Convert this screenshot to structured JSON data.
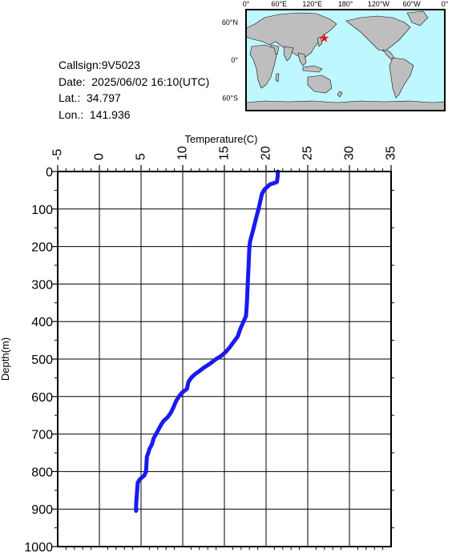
{
  "info": {
    "callsign": "Callsign:9V5023",
    "date": "Date:  2025/06/02 16:10(UTC)",
    "lat": "Lat.:  34.797",
    "lon": "Lon.:  141.936"
  },
  "map": {
    "lon_labels": [
      "0°",
      "60°E",
      "120°E",
      "180°",
      "120°W",
      "60°W",
      "0°"
    ],
    "lat_labels": [
      "60°N",
      "0°",
      "60°S"
    ],
    "marker": {
      "lat": 34.797,
      "lon": 141.936
    },
    "colors": {
      "ocean": "#bff7ff",
      "land": "#bebebe",
      "marker": "#ff0000"
    }
  },
  "chart_data": {
    "type": "line",
    "xlabel": "Temperature(C)",
    "ylabel": "Depth(m)",
    "xlim": [
      -5,
      35
    ],
    "ylim": [
      0,
      1000
    ],
    "y_inverted": true,
    "x_ticks": [
      -5,
      0,
      5,
      10,
      15,
      20,
      25,
      30,
      35
    ],
    "y_ticks": [
      0,
      100,
      200,
      300,
      400,
      500,
      600,
      700,
      800,
      900,
      1000
    ],
    "x_tick_labels": [
      "-5",
      "0",
      "5",
      "10",
      "15",
      "20",
      "25",
      "30",
      "35"
    ],
    "y_tick_labels": [
      "0",
      "100",
      "200",
      "300",
      "400",
      "500",
      "600",
      "700",
      "800",
      "900",
      "1000"
    ],
    "grid": true,
    "series": [
      {
        "color": "#1a1aee",
        "points": [
          [
            21.4,
            0
          ],
          [
            21.4,
            12
          ],
          [
            21.3,
            28
          ],
          [
            20.8,
            32
          ],
          [
            20.5,
            34
          ],
          [
            20.2,
            40
          ],
          [
            19.8,
            48
          ],
          [
            19.5,
            60
          ],
          [
            19.3,
            80
          ],
          [
            19.1,
            100
          ],
          [
            18.8,
            125
          ],
          [
            18.4,
            160
          ],
          [
            18.1,
            185
          ],
          [
            18.0,
            200
          ],
          [
            17.9,
            250
          ],
          [
            17.8,
            300
          ],
          [
            17.7,
            350
          ],
          [
            17.6,
            385
          ],
          [
            17.3,
            400
          ],
          [
            16.9,
            420
          ],
          [
            16.6,
            440
          ],
          [
            16.1,
            455
          ],
          [
            15.6,
            470
          ],
          [
            15.2,
            480
          ],
          [
            14.6,
            492
          ],
          [
            14.0,
            500
          ],
          [
            13.3,
            512
          ],
          [
            12.6,
            522
          ],
          [
            12.0,
            532
          ],
          [
            11.5,
            540
          ],
          [
            11.1,
            548
          ],
          [
            10.7,
            560
          ],
          [
            10.5,
            580
          ],
          [
            10.0,
            588
          ],
          [
            9.6,
            598
          ],
          [
            9.2,
            612
          ],
          [
            8.9,
            628
          ],
          [
            8.6,
            642
          ],
          [
            8.2,
            655
          ],
          [
            7.7,
            665
          ],
          [
            7.4,
            675
          ],
          [
            7.1,
            688
          ],
          [
            6.8,
            700
          ],
          [
            6.5,
            712
          ],
          [
            6.3,
            728
          ],
          [
            6.0,
            740
          ],
          [
            5.9,
            748
          ],
          [
            5.7,
            760
          ],
          [
            5.6,
            800
          ],
          [
            5.4,
            810
          ],
          [
            5.0,
            818
          ],
          [
            4.8,
            822
          ],
          [
            4.6,
            830
          ],
          [
            4.5,
            860
          ],
          [
            4.4,
            890
          ],
          [
            4.4,
            905
          ]
        ]
      }
    ]
  }
}
